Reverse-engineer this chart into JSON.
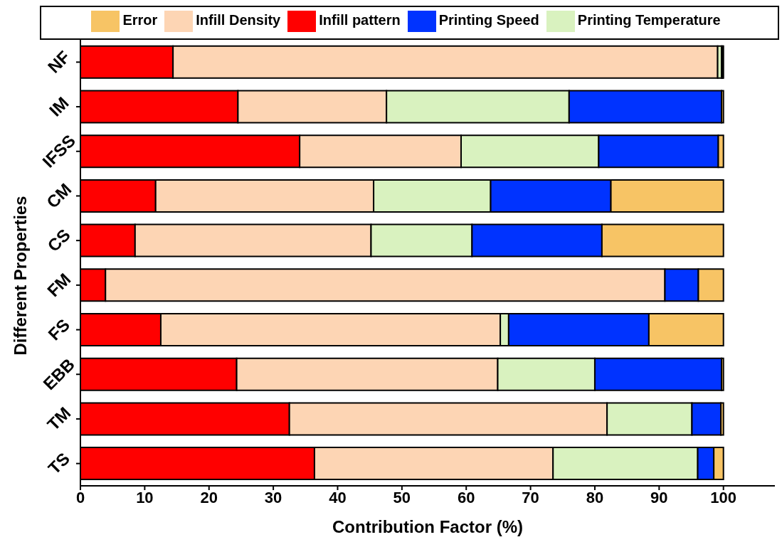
{
  "chart_data": {
    "type": "bar",
    "orientation": "horizontal",
    "stacked": true,
    "xlabel": "Contribution Factor (%)",
    "ylabel": "Different Properties",
    "categories": [
      "NF",
      "IM",
      "IFSS",
      "CM",
      "CS",
      "FM",
      "FS",
      "EBB",
      "TM",
      "TS"
    ],
    "series": [
      {
        "name": "Infill pattern",
        "color": "#ff0000",
        "values": [
          14.4,
          24.5,
          34.1,
          11.7,
          8.5,
          3.9,
          12.5,
          24.3,
          32.5,
          36.4
        ]
      },
      {
        "name": "Infill Density",
        "color": "#fdd5b4",
        "values": [
          84.7,
          23.1,
          25.1,
          33.9,
          36.7,
          87.0,
          52.8,
          40.6,
          49.4,
          37.1
        ]
      },
      {
        "name": "Printing Temperature",
        "color": "#d9f2bf",
        "values": [
          0.6,
          28.4,
          21.4,
          18.2,
          15.7,
          0,
          1.3,
          15.1,
          13.2,
          22.5
        ]
      },
      {
        "name": "Printing Speed",
        "color": "#0033ff",
        "values": [
          0.2,
          23.7,
          18.6,
          18.7,
          20.2,
          5.2,
          21.8,
          19.7,
          4.5,
          2.5
        ]
      },
      {
        "name": "Error",
        "color": "#f7c465",
        "values": [
          0.1,
          0.3,
          0.8,
          17.5,
          18.9,
          3.9,
          11.6,
          0.3,
          0.4,
          1.5
        ]
      }
    ],
    "xlim": [
      0,
      108
    ],
    "xticks": [
      0,
      10,
      20,
      30,
      40,
      50,
      60,
      70,
      80,
      90,
      100
    ],
    "legend": "top"
  }
}
